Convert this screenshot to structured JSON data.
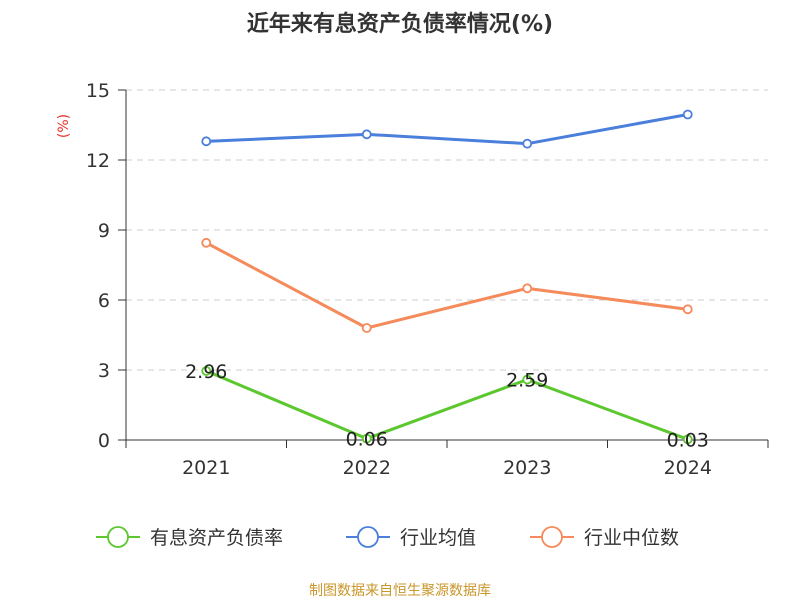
{
  "title": "近年来有息资产负债率情况(%)",
  "source": "制图数据来自恒生聚源数据库",
  "chart_data": {
    "type": "line",
    "title": "近年来有息资产负债率情况(%)",
    "ylabel": "(%)",
    "ylabel_color": "#e8302a",
    "categories": [
      "2021",
      "2022",
      "2023",
      "2024"
    ],
    "ylim": [
      0,
      15
    ],
    "yticks": [
      "0",
      "3",
      "6",
      "9",
      "12",
      "15"
    ],
    "grid": true,
    "legend_position": "bottom",
    "series": [
      {
        "name": "有息资产负债率",
        "color": "#5cc72e",
        "values": [
          2.96,
          0.06,
          2.59,
          0.03
        ],
        "labels": [
          "2.96",
          "0.06",
          "2.59",
          "0.03"
        ]
      },
      {
        "name": "行业均值",
        "color": "#4a7fdc",
        "values": [
          12.8,
          13.1,
          12.7,
          13.95
        ]
      },
      {
        "name": "行业中位数",
        "color": "#f58a5a",
        "values": [
          8.45,
          4.8,
          6.5,
          5.6
        ]
      }
    ]
  }
}
